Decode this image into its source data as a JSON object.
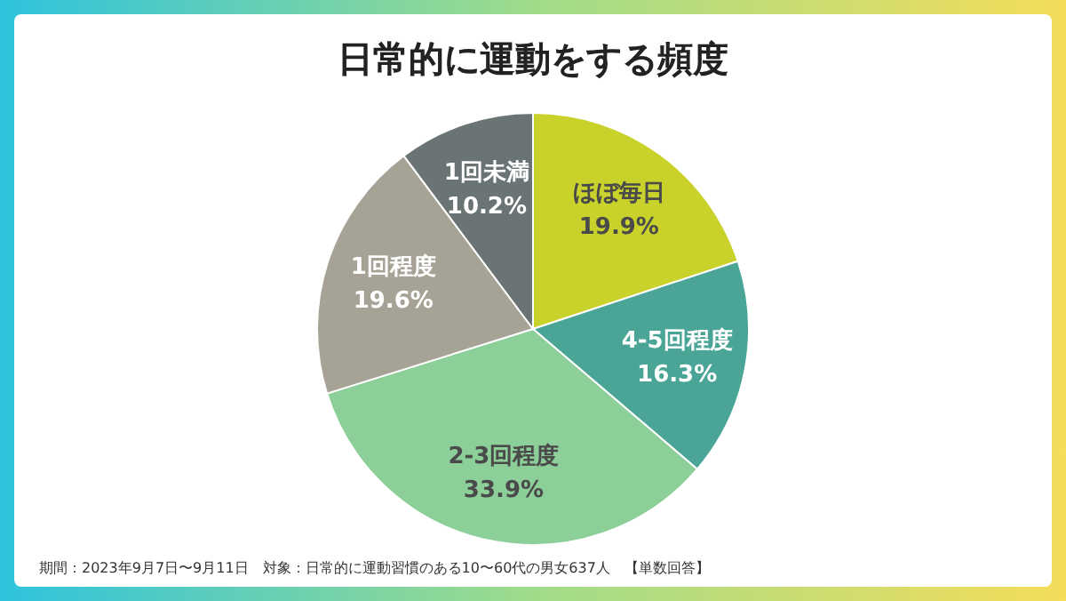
{
  "chart_data": {
    "type": "pie",
    "title": "日常的に運動をする頻度",
    "categories": [
      "ほぼ毎日",
      "4-5回程度",
      "2-3回程度",
      "1回程度",
      "1回未満"
    ],
    "values": [
      19.9,
      16.3,
      33.9,
      19.6,
      10.2
    ],
    "colors": [
      "#c9d22b",
      "#4aa597",
      "#8ccf98",
      "#a6a396",
      "#6a7474"
    ],
    "value_labels": [
      "19.9%",
      "16.3%",
      "33.9%",
      "19.6%",
      "10.2%"
    ],
    "annotations": [
      "期間：2023年9月7日〜9月11日　対象：日常的に運動習慣のある10〜60代の男女637人　【単数回答】"
    ]
  }
}
